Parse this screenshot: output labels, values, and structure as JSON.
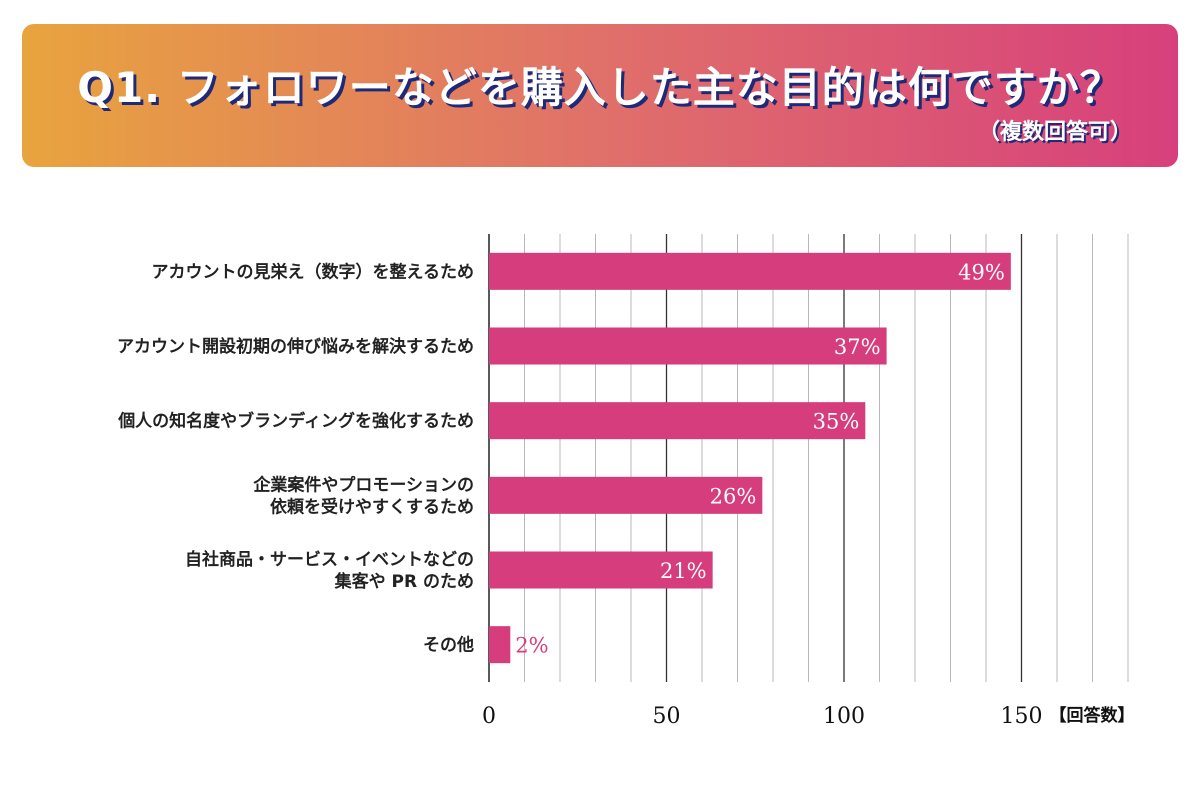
{
  "header": {
    "title": "Q1. フォロワーなどを購入した主な目的は何ですか？",
    "subtitle": "（複数回答可）",
    "gradient": [
      "#e8a43e",
      "#e0706a",
      "#d7407c"
    ],
    "title_shadow_color": "#1e2a78"
  },
  "chart_data": {
    "type": "bar",
    "orientation": "horizontal",
    "categories": [
      [
        "アカウントの見栄え（数字）を整えるため"
      ],
      [
        "アカウント開設初期の伸び悩みを解決するため"
      ],
      [
        "個人の知名度やブランディングを強化するため"
      ],
      [
        "企業案件やプロモーションの",
        "依頼を受けやすくするため"
      ],
      [
        "自社商品・サービス・イベントなどの",
        "集客や PR のため"
      ],
      [
        "その他"
      ]
    ],
    "values": [
      147,
      112,
      106,
      77,
      63,
      6
    ],
    "data_labels": [
      "49%",
      "37%",
      "35%",
      "26%",
      "21%",
      "2%"
    ],
    "xlim": [
      0,
      180
    ],
    "ticks": [
      0,
      50,
      100,
      150
    ],
    "tick_labels": [
      "0",
      "50",
      "100",
      "150"
    ],
    "minor_grid_step": 10,
    "unit_label": "【回答数】",
    "bar_color": "#d63d7c",
    "label_color_inside": "#ffffff",
    "label_color_outside": "#d63d7c"
  }
}
